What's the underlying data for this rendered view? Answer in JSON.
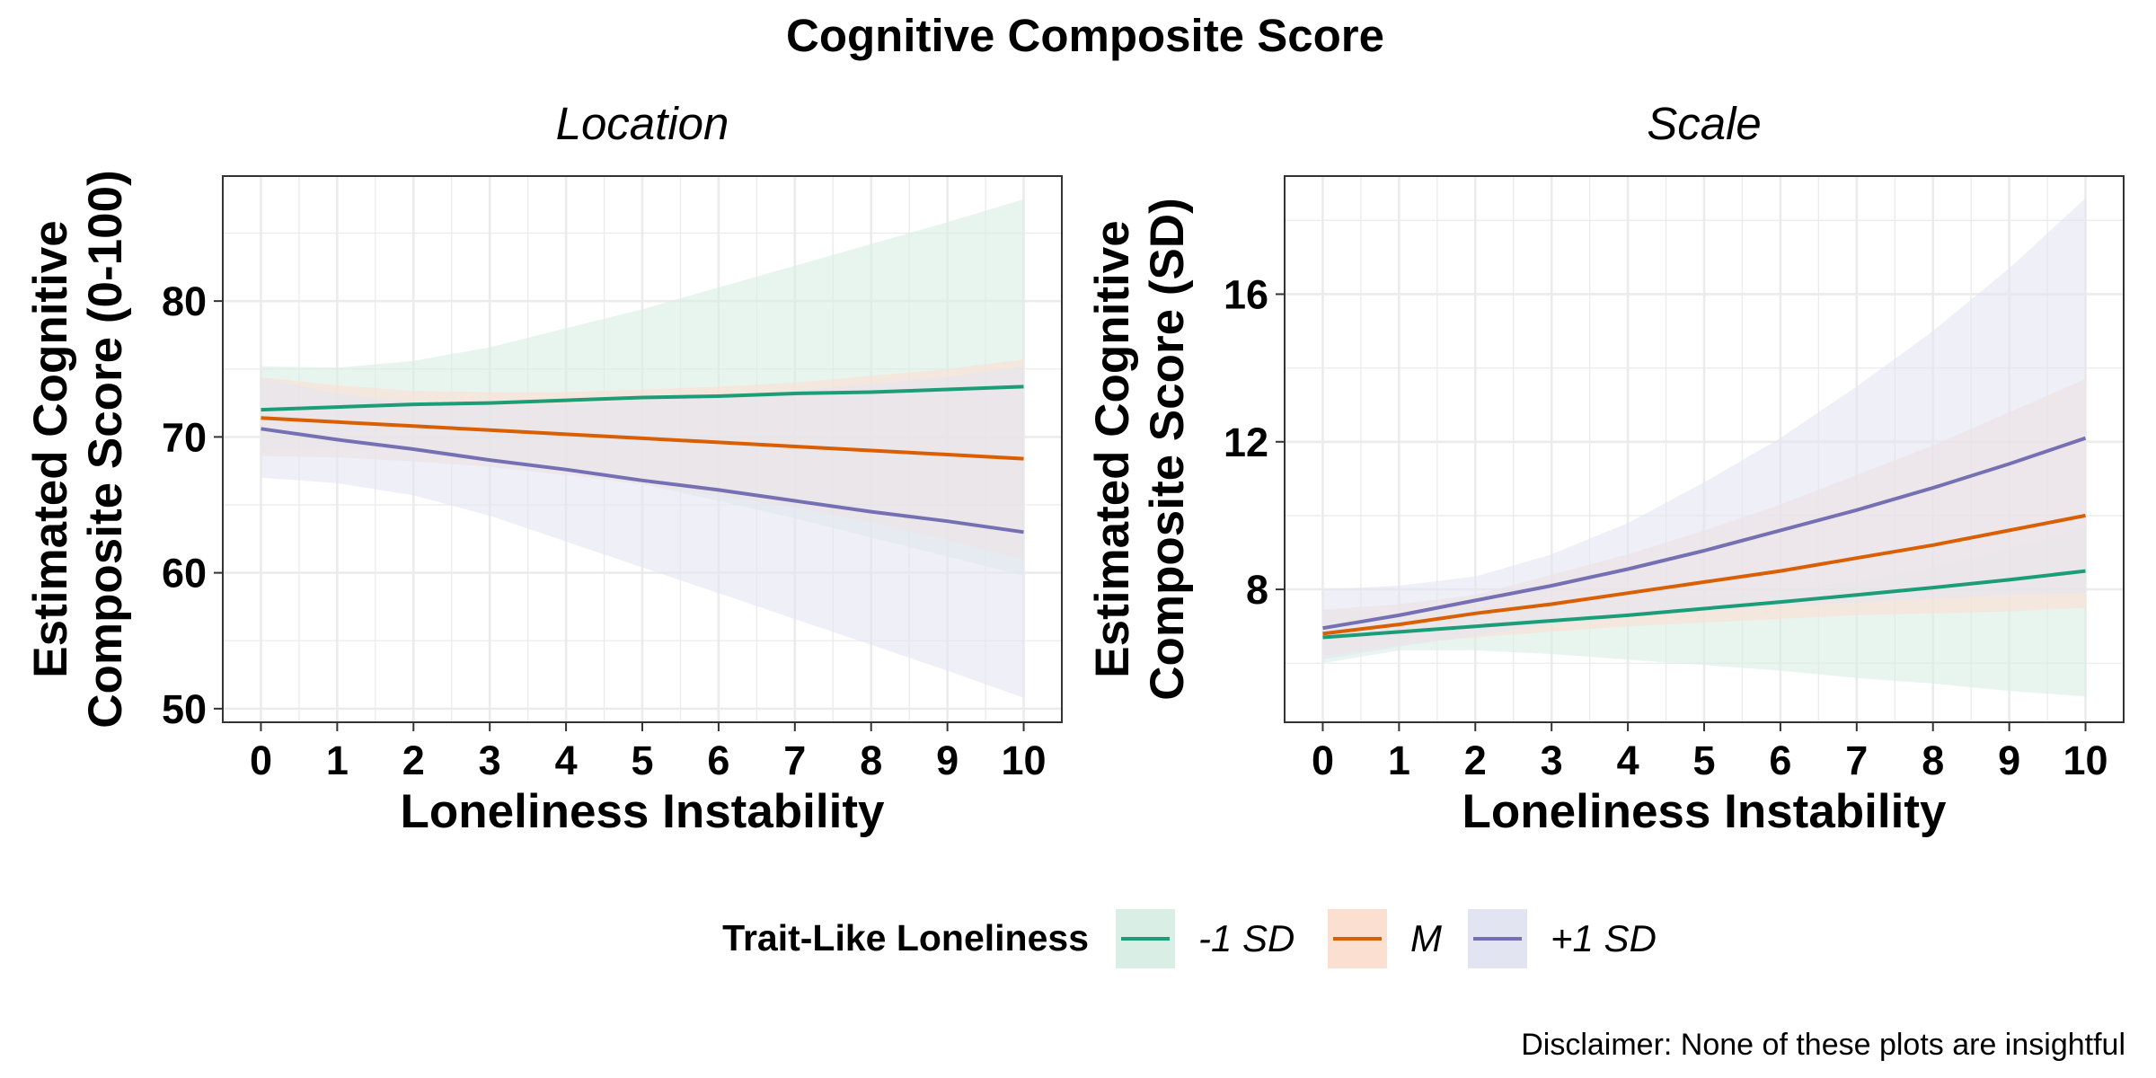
{
  "title": "Cognitive Composite Score",
  "caption": "Disclaimer: None of these plots are insightful",
  "legend": {
    "title": "Trait-Like Loneliness",
    "position": "bottom",
    "items": [
      {
        "label": "-1 SD",
        "color": "#1b9e77",
        "fill": "#d9efe5"
      },
      {
        "label": "M",
        "color": "#d95f02",
        "fill": "#fbe0d2"
      },
      {
        "label": "+1 SD",
        "color": "#7570b3",
        "fill": "#e2e5f1"
      }
    ]
  },
  "chart_data": [
    {
      "type": "line",
      "facet": "Location",
      "xlabel": "Loneliness Instability",
      "ylabel": [
        "Estimated Cognitive",
        "Composite Score (0-100)"
      ],
      "xlim": [
        -0.5,
        10.5
      ],
      "ylim": [
        49,
        89.2
      ],
      "xticks": [
        0,
        1,
        2,
        3,
        4,
        5,
        6,
        7,
        8,
        9,
        10
      ],
      "yticks": [
        50,
        60,
        70,
        80
      ],
      "grid": true,
      "x": [
        0,
        1,
        2,
        3,
        4,
        5,
        6,
        7,
        8,
        9,
        10
      ],
      "series": [
        {
          "name": "-1 SD",
          "values": [
            72.0,
            72.2,
            72.4,
            72.5,
            72.7,
            72.9,
            73.0,
            73.2,
            73.3,
            73.5,
            73.7
          ],
          "lower": [
            69.0,
            69.3,
            69.1,
            68.5,
            67.6,
            66.5,
            65.3,
            64.0,
            62.6,
            61.2,
            59.8
          ],
          "upper": [
            75.2,
            75.1,
            75.6,
            76.6,
            78.0,
            79.4,
            81.0,
            82.6,
            84.2,
            85.8,
            87.5
          ]
        },
        {
          "name": "M",
          "values": [
            71.4,
            71.1,
            70.8,
            70.5,
            70.2,
            69.9,
            69.6,
            69.3,
            69.0,
            68.7,
            68.4
          ],
          "lower": [
            68.6,
            68.5,
            68.2,
            67.8,
            67.2,
            66.5,
            65.7,
            64.8,
            63.7,
            62.4,
            61.0
          ],
          "upper": [
            74.4,
            73.8,
            73.4,
            73.3,
            73.3,
            73.5,
            73.7,
            74.0,
            74.5,
            75.0,
            75.7
          ]
        },
        {
          "name": "+1 SD",
          "values": [
            70.6,
            69.8,
            69.1,
            68.3,
            67.6,
            66.8,
            66.1,
            65.3,
            64.5,
            63.8,
            63.0
          ],
          "lower": [
            67.0,
            66.6,
            65.7,
            64.2,
            62.3,
            60.4,
            58.5,
            56.6,
            54.7,
            52.8,
            50.8
          ],
          "upper": [
            74.3,
            73.2,
            72.5,
            72.3,
            72.4,
            72.7,
            73.0,
            73.4,
            73.9,
            74.4,
            75.2
          ]
        }
      ]
    },
    {
      "type": "line",
      "facet": "Scale",
      "xlabel": "Loneliness Instability",
      "ylabel": [
        "Estimated Cognitive",
        "Composite Score (SD)"
      ],
      "xlim": [
        -0.5,
        10.5
      ],
      "ylim": [
        4.4,
        19.2
      ],
      "xticks": [
        0,
        1,
        2,
        3,
        4,
        5,
        6,
        7,
        8,
        9,
        10
      ],
      "yticks": [
        8,
        12,
        16
      ],
      "grid": true,
      "x": [
        0,
        1,
        2,
        3,
        4,
        5,
        6,
        7,
        8,
        9,
        10
      ],
      "series": [
        {
          "name": "-1 SD",
          "values": [
            6.7,
            6.85,
            7.0,
            7.15,
            7.3,
            7.48,
            7.66,
            7.85,
            8.05,
            8.26,
            8.5
          ],
          "lower": [
            6.0,
            6.35,
            6.35,
            6.25,
            6.1,
            5.95,
            5.8,
            5.6,
            5.45,
            5.25,
            5.1
          ],
          "upper": [
            7.45,
            7.35,
            7.5,
            7.6,
            7.7,
            7.85,
            8.0,
            8.2,
            8.6,
            9.1,
            9.7
          ]
        },
        {
          "name": "M",
          "values": [
            6.8,
            7.05,
            7.35,
            7.6,
            7.9,
            8.2,
            8.5,
            8.85,
            9.2,
            9.6,
            10.0
          ],
          "lower": [
            6.2,
            6.5,
            6.7,
            6.85,
            7.0,
            7.1,
            7.2,
            7.3,
            7.35,
            7.4,
            7.5
          ],
          "upper": [
            7.45,
            7.6,
            7.85,
            8.4,
            8.95,
            9.6,
            10.3,
            11.1,
            11.9,
            12.8,
            13.7
          ]
        },
        {
          "name": "+1 SD",
          "values": [
            6.95,
            7.3,
            7.7,
            8.1,
            8.55,
            9.05,
            9.6,
            10.15,
            10.75,
            11.4,
            12.1
          ],
          "lower": [
            6.1,
            6.45,
            6.75,
            7.05,
            7.25,
            7.4,
            7.55,
            7.65,
            7.75,
            7.85,
            7.9
          ],
          "upper": [
            8.0,
            8.1,
            8.35,
            8.95,
            9.8,
            10.9,
            12.1,
            13.5,
            15.0,
            16.7,
            18.6
          ]
        }
      ]
    }
  ]
}
